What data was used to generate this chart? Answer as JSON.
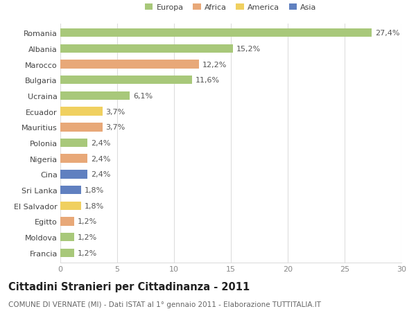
{
  "countries": [
    "Romania",
    "Albania",
    "Marocco",
    "Bulgaria",
    "Ucraina",
    "Ecuador",
    "Mauritius",
    "Polonia",
    "Nigeria",
    "Cina",
    "Sri Lanka",
    "El Salvador",
    "Egitto",
    "Moldova",
    "Francia"
  ],
  "values": [
    27.4,
    15.2,
    12.2,
    11.6,
    6.1,
    3.7,
    3.7,
    2.4,
    2.4,
    2.4,
    1.8,
    1.8,
    1.2,
    1.2,
    1.2
  ],
  "labels": [
    "27,4%",
    "15,2%",
    "12,2%",
    "11,6%",
    "6,1%",
    "3,7%",
    "3,7%",
    "2,4%",
    "2,4%",
    "2,4%",
    "1,8%",
    "1,8%",
    "1,2%",
    "1,2%",
    "1,2%"
  ],
  "continents": [
    "Europa",
    "Europa",
    "Africa",
    "Europa",
    "Europa",
    "America",
    "Africa",
    "Europa",
    "Africa",
    "Asia",
    "Asia",
    "America",
    "Africa",
    "Europa",
    "Europa"
  ],
  "continent_colors": {
    "Europa": "#a8c87a",
    "Africa": "#e8a878",
    "America": "#f0d060",
    "Asia": "#6080c0"
  },
  "legend_items": [
    "Europa",
    "Africa",
    "America",
    "Asia"
  ],
  "legend_colors": [
    "#a8c87a",
    "#e8a878",
    "#f0d060",
    "#6080c0"
  ],
  "title": "Cittadini Stranieri per Cittadinanza - 2011",
  "subtitle": "COMUNE DI VERNATE (MI) - Dati ISTAT al 1° gennaio 2011 - Elaborazione TUTTITALIA.IT",
  "xlim": [
    0,
    30
  ],
  "xticks": [
    0,
    5,
    10,
    15,
    20,
    25,
    30
  ],
  "bar_height": 0.55,
  "background_color": "#ffffff",
  "grid_color": "#dddddd",
  "label_fontsize": 8.0,
  "title_fontsize": 10.5,
  "subtitle_fontsize": 7.5
}
